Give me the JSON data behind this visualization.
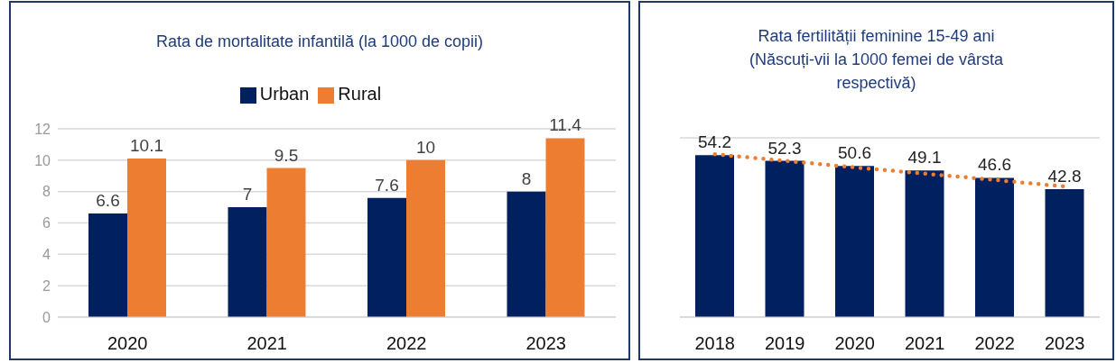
{
  "chart_data": [
    {
      "type": "bar",
      "title": "Rata de mortalitate infantilă (la 1000 de copii)",
      "categories": [
        "2020",
        "2021",
        "2022",
        "2023"
      ],
      "series": [
        {
          "name": "Urban",
          "color": "#002060",
          "values": [
            6.6,
            7,
            7.6,
            8
          ]
        },
        {
          "name": "Rural",
          "color": "#ed7d31",
          "values": [
            10.1,
            9.5,
            10,
            11.4
          ]
        }
      ],
      "ylim": [
        0,
        12
      ],
      "yticks": [
        0,
        2,
        4,
        6,
        8,
        10,
        12
      ],
      "grid": "y",
      "legend": "top",
      "data_labels": true
    },
    {
      "type": "bar",
      "title": "Rata fertilității feminine  15-49 ani (Născuți-vii la 1000 femei de vârsta respectivă)",
      "categories": [
        "2018",
        "2019",
        "2020",
        "2021",
        "2022",
        "2023"
      ],
      "series": [
        {
          "color": "#002060",
          "values": [
            54.2,
            52.3,
            50.6,
            49.1,
            46.6,
            42.8
          ],
          "value_labels": [
            "54.2",
            "52.3",
            "50.6",
            "49.1",
            "46.6",
            "42.8"
          ]
        },
        {
          "type": "line",
          "color": "#ed7d31",
          "values": [
            54.5,
            52.3,
            50.1,
            48.0,
            45.9,
            43.7
          ],
          "line_style": "dotted",
          "marker": "none"
        }
      ],
      "ylim": [
        0,
        60
      ],
      "grid": "y",
      "tick_labels": "x",
      "legend": false
    }
  ]
}
